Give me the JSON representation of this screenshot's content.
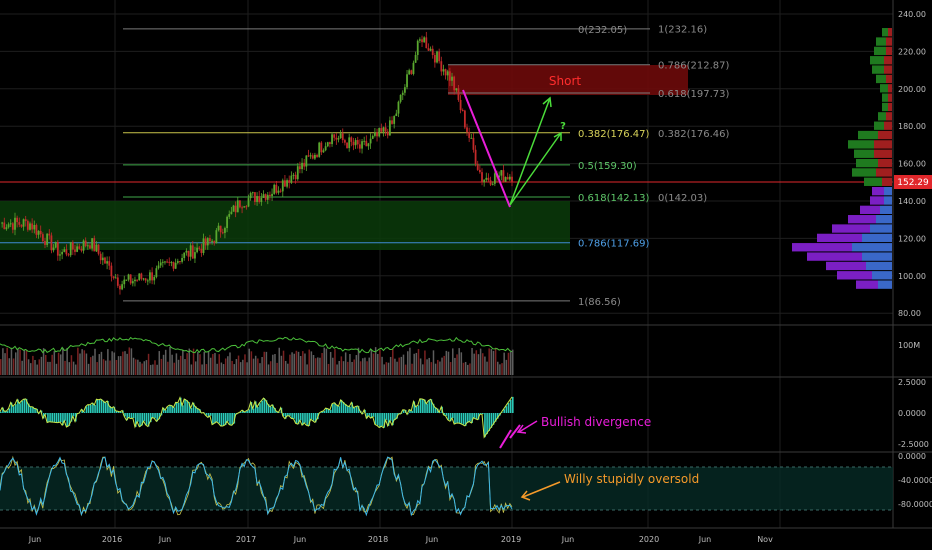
{
  "chart_data": {
    "type": "line",
    "title": "",
    "colors": {
      "bg": "#000000",
      "grid": "#1e1e1e",
      "axis_text": "#bdbdbd",
      "up_candle": "#5aa82f",
      "down_candle": "#c42a2a",
      "magenta": "#e91ed9",
      "green_arrow": "#4bdc3a",
      "orange": "#f59a2a",
      "short_box": "#6d0a0a",
      "demand_box": "#0a3b0a",
      "price_tag": "#e0272b"
    },
    "x_axis_labels": [
      "Jun",
      "2016",
      "Jun",
      "2017",
      "Jun",
      "2018",
      "Jun",
      "2019",
      "Jun",
      "2020",
      "Jun",
      "Nov"
    ],
    "price_axis": {
      "ticks": [
        "240.00",
        "220.00",
        "200.00",
        "180.00",
        "160.00",
        "140.00",
        "120.00",
        "100.00",
        "80.00"
      ],
      "ylim": [
        80,
        240
      ],
      "current_price": "152.29"
    },
    "price_series": {
      "x": [
        "2015-03",
        "2015-06",
        "2015-09",
        "2015-12",
        "2016-03",
        "2016-06",
        "2016-09",
        "2016-12",
        "2017-03",
        "2017-06",
        "2017-09",
        "2017-12",
        "2018-03",
        "2018-06",
        "2018-08",
        "2018-10",
        "2018-12",
        "2019-01"
      ],
      "close": [
        128,
        128,
        112,
        118,
        96,
        100,
        110,
        118,
        140,
        145,
        158,
        175,
        168,
        180,
        228,
        205,
        152,
        154
      ]
    },
    "fib_left": [
      {
        "label": "0(232.05)",
        "value": 232.05
      },
      {
        "label": "0.786(212.87)",
        "value": 212.87
      },
      {
        "label": "0.618(197.73)",
        "value": 197.73
      },
      {
        "label": "0.382(176.47)",
        "value": 176.47
      },
      {
        "label": "0.5(159.30)",
        "value": 159.3
      },
      {
        "label": "0.618(142.13)",
        "value": 142.13
      },
      {
        "label": "0.786(117.69)",
        "value": 117.69
      },
      {
        "label": "1(86.56)",
        "value": 86.56
      }
    ],
    "fib_right": [
      {
        "label": "1(232.16)",
        "value": 232.16
      },
      {
        "label": "0.382(176.46)",
        "value": 176.46
      },
      {
        "label": "0(142.03)",
        "value": 142.03
      }
    ],
    "volume_profile": [
      {
        "price": 95,
        "up": 22,
        "down": 14
      },
      {
        "price": 100,
        "up": 35,
        "down": 20
      },
      {
        "price": 105,
        "up": 40,
        "down": 26
      },
      {
        "price": 110,
        "up": 55,
        "down": 30
      },
      {
        "price": 115,
        "up": 60,
        "down": 40
      },
      {
        "price": 120,
        "up": 45,
        "down": 30
      },
      {
        "price": 125,
        "up": 38,
        "down": 22
      },
      {
        "price": 130,
        "up": 28,
        "down": 16
      },
      {
        "price": 135,
        "up": 20,
        "down": 12
      },
      {
        "price": 140,
        "up": 14,
        "down": 8
      },
      {
        "price": 145,
        "up": 12,
        "down": 8
      },
      {
        "price": 150,
        "up": 18,
        "down": 10
      },
      {
        "price": 155,
        "up": 24,
        "down": 16
      },
      {
        "price": 160,
        "up": 22,
        "down": 14
      },
      {
        "price": 165,
        "up": 20,
        "down": 18
      },
      {
        "price": 170,
        "up": 26,
        "down": 18
      },
      {
        "price": 175,
        "up": 20,
        "down": 14
      },
      {
        "price": 180,
        "up": 10,
        "down": 8
      },
      {
        "price": 185,
        "up": 8,
        "down": 6
      },
      {
        "price": 190,
        "up": 6,
        "down": 4
      },
      {
        "price": 195,
        "up": 6,
        "down": 4
      },
      {
        "price": 200,
        "up": 8,
        "down": 4
      },
      {
        "price": 205,
        "up": 10,
        "down": 6
      },
      {
        "price": 210,
        "up": 12,
        "down": 8
      },
      {
        "price": 215,
        "up": 14,
        "down": 8
      },
      {
        "price": 220,
        "up": 12,
        "down": 6
      },
      {
        "price": 225,
        "up": 10,
        "down": 6
      },
      {
        "price": 230,
        "up": 6,
        "down": 4
      }
    ],
    "volume_panel": {
      "ticks": [
        "100M"
      ]
    },
    "macd_panel": {
      "ticks": [
        "2.5000",
        "0.0000",
        "-2.5000"
      ],
      "ylim": [
        -2.5,
        2.5
      ],
      "annotation": "Bullish divergence"
    },
    "willy_panel": {
      "ticks": [
        "0.0000",
        "-40.0000",
        "-80.0000"
      ],
      "ylim": [
        -100,
        0
      ],
      "annotation": "Willy stupidly oversold"
    },
    "annotations": {
      "short_label": "Short",
      "question_mark": "?"
    }
  }
}
